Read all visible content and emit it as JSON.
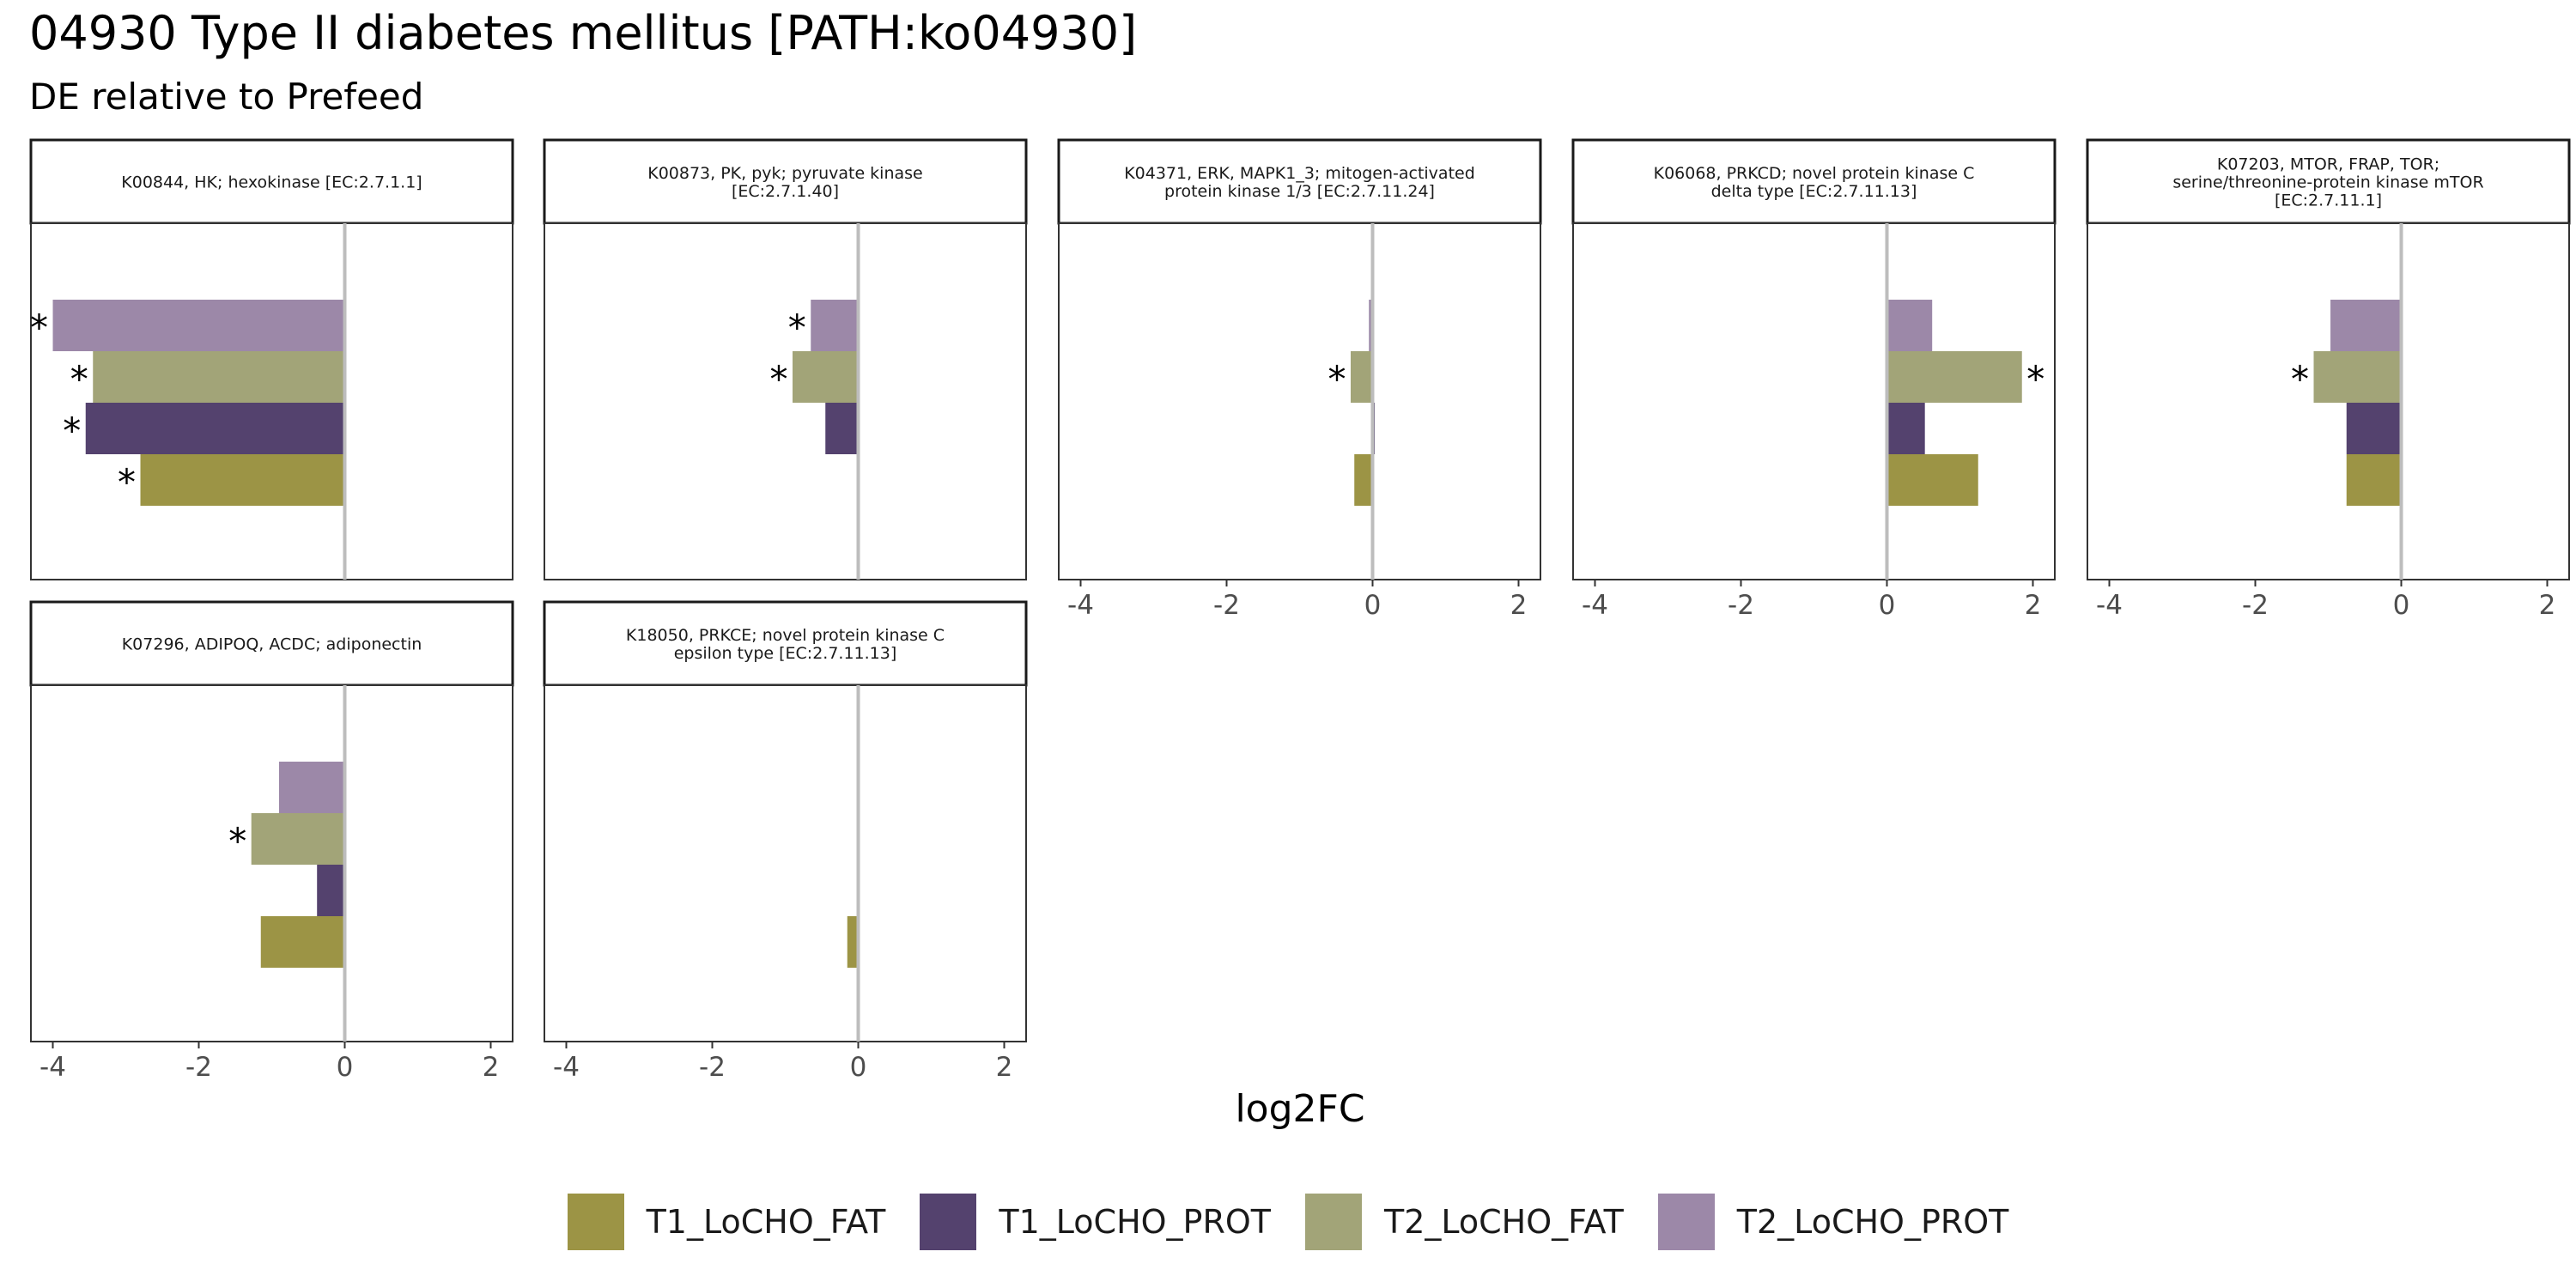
{
  "title": "04930 Type II diabetes mellitus [PATH:ko04930]",
  "subtitle": "DE relative to Prefeed",
  "chart_data": {
    "type": "bar",
    "orientation": "horizontal",
    "xlabel": "log2FC",
    "xlim": [
      -4.3,
      2.3
    ],
    "x_ticks": [
      -4,
      -2,
      0,
      2
    ],
    "x_tick_labels": [
      "-4",
      "-2",
      "0",
      "2"
    ],
    "series": [
      {
        "name": "T1_LoCHO_FAT",
        "color": "#9C9445"
      },
      {
        "name": "T1_LoCHO_PROT",
        "color": "#54426E"
      },
      {
        "name": "T2_LoCHO_FAT",
        "color": "#A2A478"
      },
      {
        "name": "T2_LoCHO_PROT",
        "color": "#9C88A8"
      }
    ],
    "panels": [
      {
        "title_lines": [
          "K00844, HK; hexokinase [EC:2.7.1.1]"
        ],
        "values": [
          -2.8,
          -3.55,
          -3.45,
          -4.0
        ],
        "significant": [
          true,
          true,
          true,
          true
        ]
      },
      {
        "title_lines": [
          "K00873, PK, pyk; pyruvate kinase",
          "[EC:2.7.1.40]"
        ],
        "values": [
          null,
          -0.45,
          -0.9,
          -0.65
        ],
        "significant": [
          false,
          false,
          true,
          true
        ]
      },
      {
        "title_lines": [
          "K04371, ERK, MAPK1_3; mitogen-activated",
          "protein kinase 1/3 [EC:2.7.11.24]"
        ],
        "values": [
          -0.25,
          0.03,
          -0.3,
          -0.05
        ],
        "significant": [
          false,
          false,
          true,
          false
        ]
      },
      {
        "title_lines": [
          "K06068, PRKCD; novel protein kinase C",
          "delta type [EC:2.7.11.13]"
        ],
        "values": [
          1.25,
          0.52,
          1.85,
          0.62
        ],
        "significant": [
          false,
          false,
          true,
          false
        ]
      },
      {
        "title_lines": [
          "K07203, MTOR, FRAP, TOR;",
          "serine/threonine-protein kinase mTOR",
          "[EC:2.7.11.1]"
        ],
        "values": [
          -0.75,
          -0.75,
          -1.2,
          -0.97
        ],
        "significant": [
          false,
          false,
          true,
          false
        ]
      },
      {
        "title_lines": [
          "K07296, ADIPOQ, ACDC; adiponectin"
        ],
        "values": [
          -1.15,
          -0.38,
          -1.28,
          -0.9
        ],
        "significant": [
          false,
          false,
          true,
          false
        ]
      },
      {
        "title_lines": [
          "K18050, PRKCE; novel protein kinase C",
          "epsilon type [EC:2.7.11.13]"
        ],
        "values": [
          -0.15,
          null,
          null,
          null
        ],
        "significant": [
          false,
          false,
          false,
          false
        ]
      }
    ],
    "significance_marker": "*",
    "legend_position": "bottom"
  }
}
